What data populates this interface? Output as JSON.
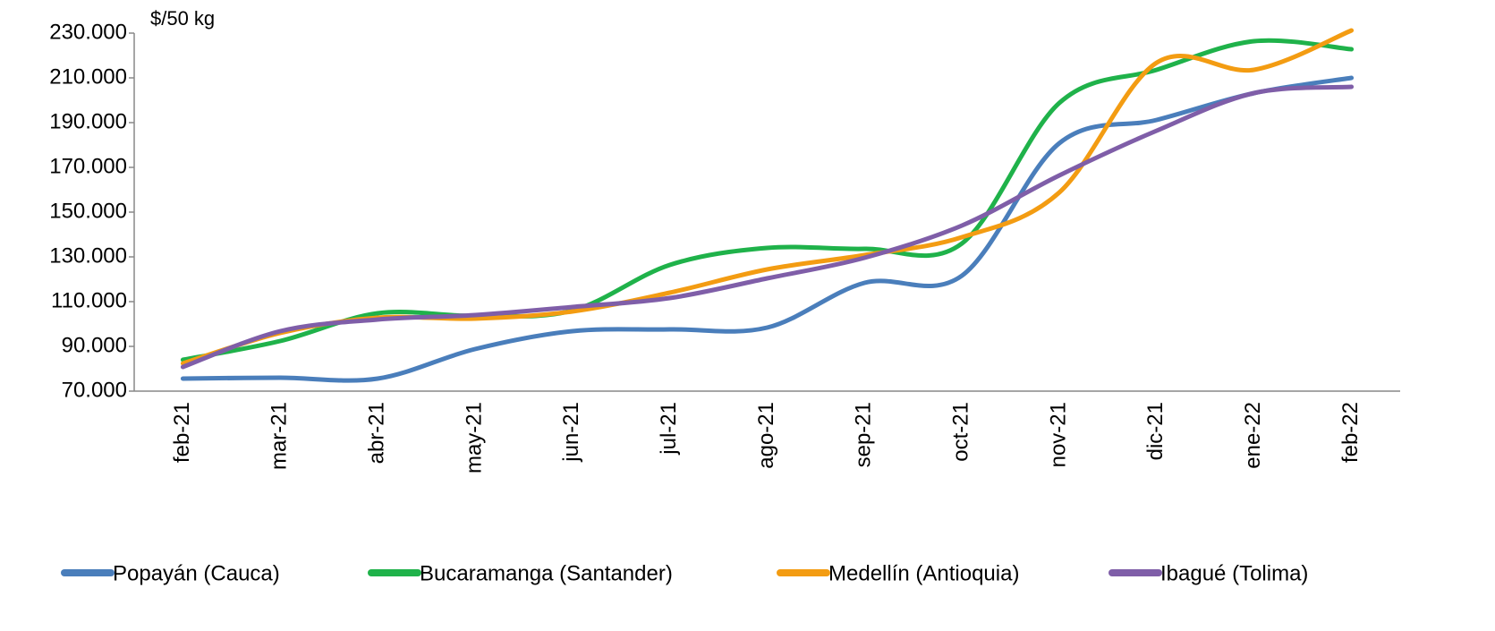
{
  "chart_data": {
    "type": "line",
    "y_label": "$/50 kg",
    "categories": [
      "feb-21",
      "mar-21",
      "abr-21",
      "may-21",
      "jun-21",
      "jul-21",
      "ago-21",
      "sep-21",
      "oct-21",
      "nov-21",
      "dic-21",
      "ene-22",
      "feb-22"
    ],
    "series": [
      {
        "name": "Popayán (Cauca)",
        "color": "#4a7ebb",
        "values": [
          75600,
          76000,
          75600,
          88800,
          96800,
          97600,
          98400,
          118400,
          121600,
          180800,
          191200,
          203200,
          210000
        ]
      },
      {
        "name": "Bucaramanga (Santander)",
        "color": "#1fb24a",
        "values": [
          84000,
          92400,
          104800,
          103600,
          106000,
          126400,
          134000,
          133600,
          136000,
          198800,
          213600,
          226400,
          222800
        ]
      },
      {
        "name": "Medellín (Antioquia)",
        "color": "#f39c12",
        "values": [
          82400,
          96000,
          102800,
          102400,
          105600,
          114000,
          124400,
          130800,
          138800,
          158800,
          216800,
          213600,
          231200
        ]
      },
      {
        "name": "Ibagué (Tolima)",
        "color": "#7f5ea8",
        "values": [
          80800,
          96800,
          102000,
          104000,
          107600,
          111600,
          120400,
          129600,
          144000,
          166400,
          186400,
          203200,
          206000
        ]
      }
    ],
    "ylim": [
      70000,
      230000
    ],
    "yticks": [
      {
        "value": 70000,
        "label": "70.000"
      },
      {
        "value": 90000,
        "label": "90.000"
      },
      {
        "value": 110000,
        "label": "110.000"
      },
      {
        "value": 130000,
        "label": "130.000"
      },
      {
        "value": 150000,
        "label": "150.000"
      },
      {
        "value": 170000,
        "label": "170.000"
      },
      {
        "value": 190000,
        "label": "190.000"
      },
      {
        "value": 210000,
        "label": "210.000"
      },
      {
        "value": 230000,
        "label": "230.000"
      }
    ],
    "legend": "bottom"
  }
}
